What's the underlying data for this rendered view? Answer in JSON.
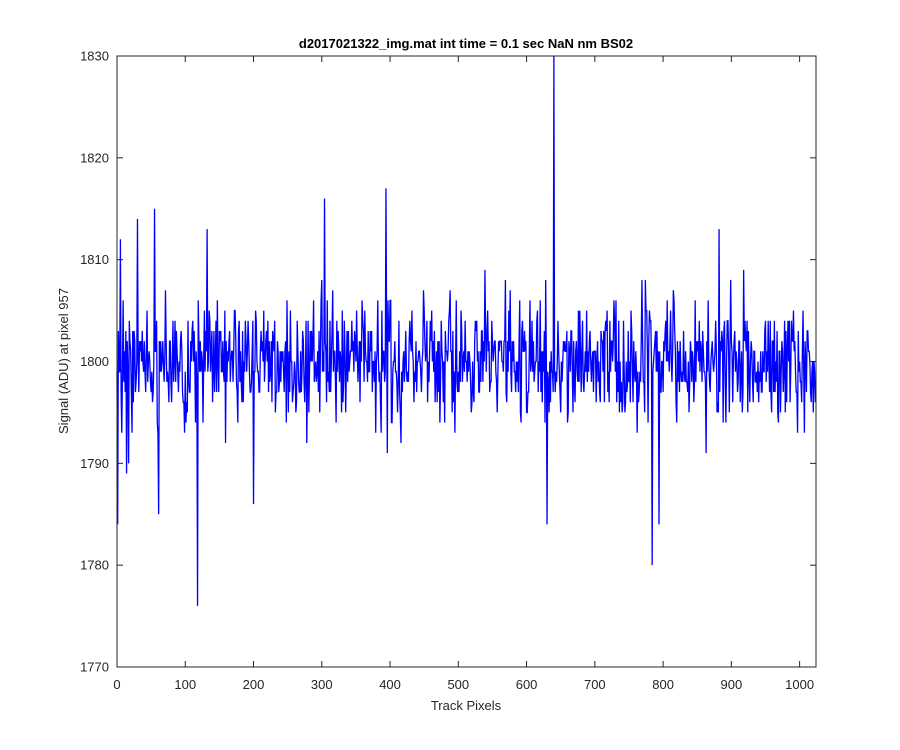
{
  "chart_data": {
    "type": "line",
    "title": "d2017021322_img.mat int time = 0.1 sec  NaN nm BS02",
    "xlabel": "Track Pixels",
    "ylabel": "Signal (ADU) at pixel 957",
    "xlim": [
      0,
      1024
    ],
    "ylim": [
      1770,
      1830
    ],
    "xticks": [
      0,
      100,
      200,
      300,
      400,
      500,
      600,
      700,
      800,
      900,
      1000
    ],
    "yticks": [
      1770,
      1780,
      1790,
      1800,
      1810,
      1820,
      1830
    ],
    "grid": false,
    "box": true,
    "series": [
      {
        "color": "#0000ff",
        "noise": {
          "count": 1024,
          "mean": 1800,
          "range_typical": [
            1788,
            1812
          ],
          "seed": 20170213
        },
        "notable_points": [
          {
            "x": 1,
            "y": 1784
          },
          {
            "x": 5,
            "y": 1812
          },
          {
            "x": 14,
            "y": 1789
          },
          {
            "x": 30,
            "y": 1814
          },
          {
            "x": 55,
            "y": 1815
          },
          {
            "x": 61,
            "y": 1785
          },
          {
            "x": 118,
            "y": 1776
          },
          {
            "x": 132,
            "y": 1813
          },
          {
            "x": 200,
            "y": 1786
          },
          {
            "x": 304,
            "y": 1816
          },
          {
            "x": 394,
            "y": 1817
          },
          {
            "x": 630,
            "y": 1784
          },
          {
            "x": 640,
            "y": 1830
          },
          {
            "x": 784,
            "y": 1780
          },
          {
            "x": 794,
            "y": 1784
          },
          {
            "x": 882,
            "y": 1813
          }
        ]
      }
    ]
  }
}
